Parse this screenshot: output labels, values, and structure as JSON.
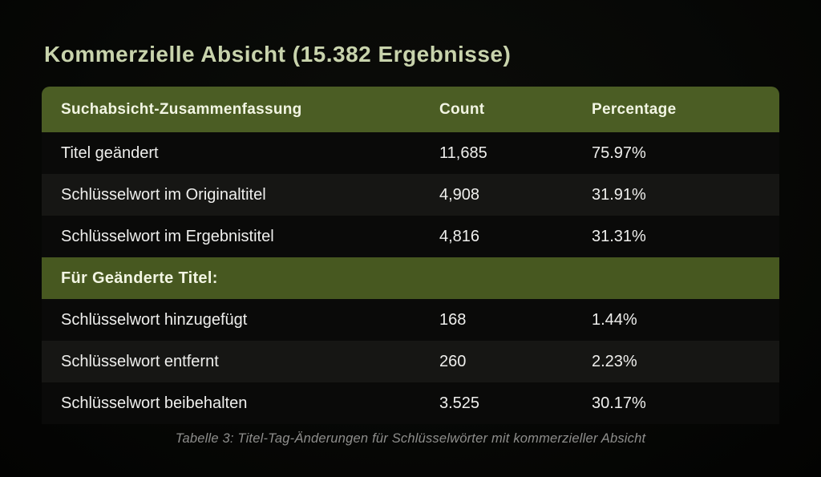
{
  "page": {
    "title": "Kommerzielle Absicht (15.382 Ergebnisse)",
    "caption": "Tabelle 3: Titel-Tag-Änderungen für Schlüsselwörter mit kommerzieller Absicht"
  },
  "table": {
    "headers": [
      "Suchabsicht-Zusammenfassung",
      "Count",
      "Percentage"
    ],
    "rows_summary": [
      {
        "label": "Titel geändert",
        "count": "11,685",
        "percentage": "75.97%"
      },
      {
        "label": "Schlüsselwort im Originaltitel",
        "count": "4,908",
        "percentage": "31.91%"
      },
      {
        "label": "Schlüsselwort im Ergebnistitel",
        "count": "4,816",
        "percentage": "31.31%"
      }
    ],
    "section_header": "Für Geänderte Titel:",
    "rows_changed": [
      {
        "label": "Schlüsselwort hinzugefügt",
        "count": "168",
        "percentage": "1.44%"
      },
      {
        "label": "Schlüsselwort entfernt",
        "count": "260",
        "percentage": "2.23%"
      },
      {
        "label": "Schlüsselwort beibehalten",
        "count": "3.525",
        "percentage": "30.17%"
      }
    ]
  },
  "colors": {
    "page_background": "#070806",
    "title_text": "#c8d3ac",
    "header_background": "#4b5d24",
    "section_background": "#475820",
    "row_dark": "#0a0a09",
    "row_light": "#161614",
    "row_text": "#efefed",
    "caption_text": "#8e8e8c"
  },
  "chart_data": {
    "type": "table",
    "title": "Kommerzielle Absicht (15.382 Ergebnisse)",
    "columns": [
      "Suchabsicht-Zusammenfassung",
      "Count",
      "Percentage"
    ],
    "rows": [
      [
        "Titel geändert",
        11685,
        75.97
      ],
      [
        "Schlüsselwort im Originaltitel",
        4908,
        31.91
      ],
      [
        "Schlüsselwort im Ergebnistitel",
        4816,
        31.31
      ],
      [
        "Für Geänderte Titel:",
        null,
        null
      ],
      [
        "Schlüsselwort hinzugefügt",
        168,
        1.44
      ],
      [
        "Schlüsselwort entfernt",
        260,
        2.23
      ],
      [
        "Schlüsselwort beibehalten",
        3525,
        30.17
      ]
    ],
    "caption": "Tabelle 3: Titel-Tag-Änderungen für Schlüsselwörter mit kommerzieller Absicht",
    "notes": "Static infographic table on dark background; olive-green header and section divider rows; alternating dark row shading."
  }
}
